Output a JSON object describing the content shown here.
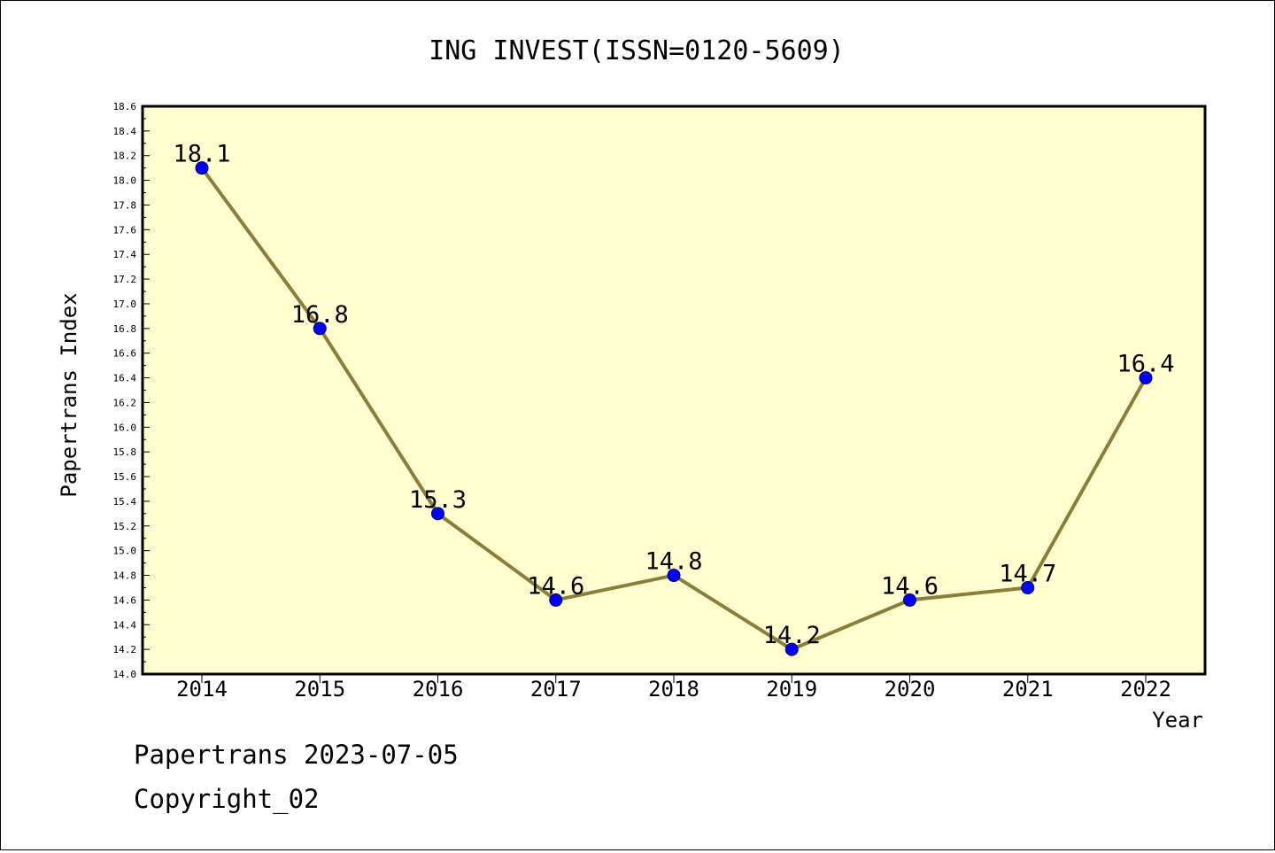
{
  "chart_data": {
    "type": "line",
    "title": "ING INVEST(ISSN=0120-5609)",
    "xlabel": "Year",
    "ylabel": "Papertrans Index",
    "categories": [
      "2014",
      "2015",
      "2016",
      "2017",
      "2018",
      "2019",
      "2020",
      "2021",
      "2022"
    ],
    "series": [
      {
        "values": [
          18.1,
          16.8,
          15.3,
          14.6,
          14.8,
          14.2,
          14.6,
          14.7,
          16.4
        ],
        "data_labels": [
          "18.1",
          "16.8",
          "15.3",
          "14.6",
          "14.8",
          "14.2",
          "14.6",
          "14.7",
          "16.4"
        ]
      }
    ],
    "ylim": [
      14.0,
      18.6
    ],
    "y_ticks": [
      "14.0",
      "14.2",
      "14.4",
      "14.6",
      "14.8",
      "15.0",
      "15.2",
      "15.4",
      "15.6",
      "15.8",
      "16.0",
      "16.2",
      "16.4",
      "16.6",
      "16.8",
      "17.0",
      "17.2",
      "17.4",
      "17.6",
      "17.8",
      "18.0",
      "18.2",
      "18.4",
      "18.6"
    ],
    "grid": false,
    "legend": "none",
    "colors": {
      "plot_background": "#ffffd0",
      "line": "#8b7d3a",
      "marker": "#0000ff"
    }
  },
  "footer": {
    "line1": "Papertrans 2023-07-05",
    "line2": "Copyright_02"
  }
}
